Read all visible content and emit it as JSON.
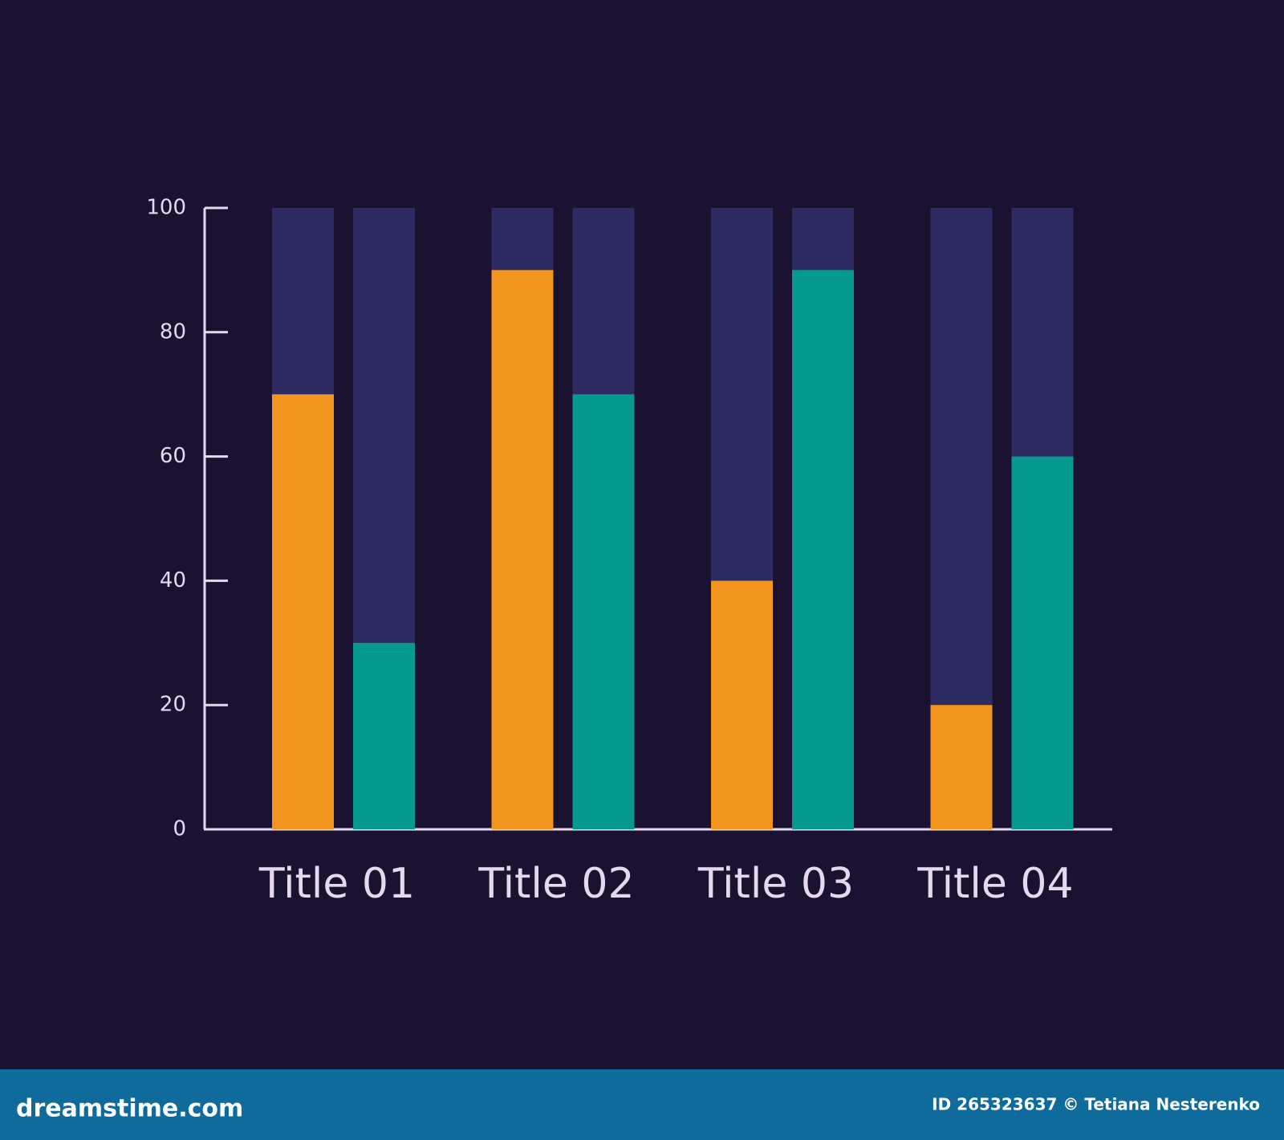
{
  "chart_data": {
    "type": "bar",
    "categories": [
      "Title 01",
      "Title 02",
      "Title 03",
      "Title 04"
    ],
    "series": [
      {
        "color": "#f2951f",
        "values": [
          70,
          90,
          40,
          20
        ]
      },
      {
        "color": "#06998f",
        "values": [
          30,
          70,
          90,
          60
        ]
      }
    ],
    "track_color": "#2e2b63",
    "ylim": [
      0,
      100
    ],
    "yticks": [
      0,
      20,
      40,
      60,
      80,
      100
    ]
  },
  "footer": {
    "site": "dreamstime.com",
    "credit": "ID 265323637 © Tetiana Nesterenko"
  }
}
